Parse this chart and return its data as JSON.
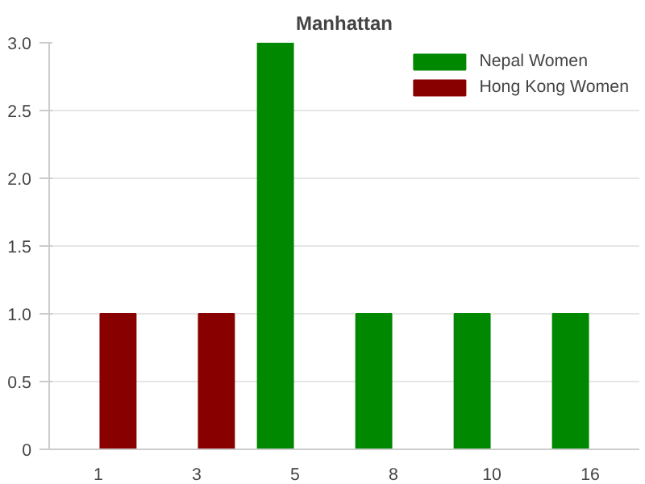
{
  "chart_data": {
    "type": "bar",
    "title": "Manhattan",
    "categories": [
      "1",
      "3",
      "5",
      "8",
      "10",
      "16"
    ],
    "series": [
      {
        "name": "Nepal Women",
        "color": "#008800",
        "values": [
          null,
          null,
          3,
          1,
          1,
          1
        ]
      },
      {
        "name": "Hong Kong Women",
        "color": "#880000",
        "values": [
          1,
          1,
          null,
          null,
          null,
          null
        ]
      }
    ],
    "ylim": [
      0,
      3
    ],
    "yticks": [
      0,
      0.5,
      {
        "value": 1,
        "label": "1.0"
      },
      1.5,
      {
        "value": 2,
        "label": "2.0"
      },
      2.5,
      {
        "value": 3,
        "label": "3.0"
      }
    ],
    "grid": "y",
    "legend": "top right"
  }
}
